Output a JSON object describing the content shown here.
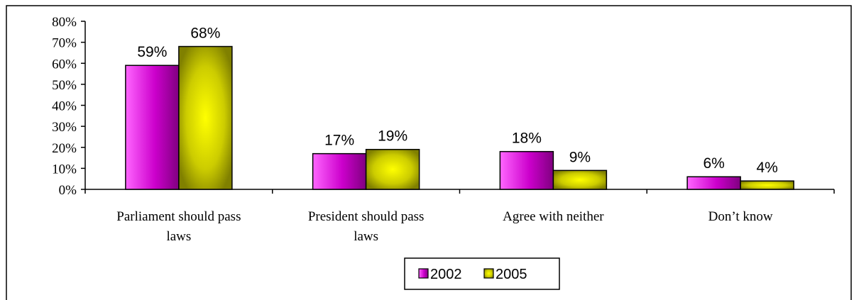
{
  "chart_data": {
    "type": "bar",
    "categories": [
      [
        "Parliament should pass",
        "laws"
      ],
      [
        "President should pass",
        "laws"
      ],
      [
        "Agree with neither"
      ],
      [
        "Don’t know"
      ]
    ],
    "series": [
      {
        "name": "2002",
        "values": [
          59,
          17,
          18,
          6
        ],
        "labels": [
          "59%",
          "17%",
          "18%",
          "6%"
        ],
        "color": "#cc00cc",
        "color_dark": "#800080",
        "color_light": "#ff66ff"
      },
      {
        "name": "2005",
        "values": [
          68,
          19,
          9,
          4
        ],
        "labels": [
          "68%",
          "19%",
          "9%",
          "4%"
        ],
        "color": "#cccc00",
        "color_dark": "#808000",
        "color_light": "#ffff00"
      }
    ],
    "yticks": [
      "0%",
      "10%",
      "20%",
      "30%",
      "40%",
      "50%",
      "60%",
      "70%",
      "80%"
    ],
    "ylim": [
      0,
      80
    ],
    "grid": false,
    "legend_position": "bottom"
  }
}
